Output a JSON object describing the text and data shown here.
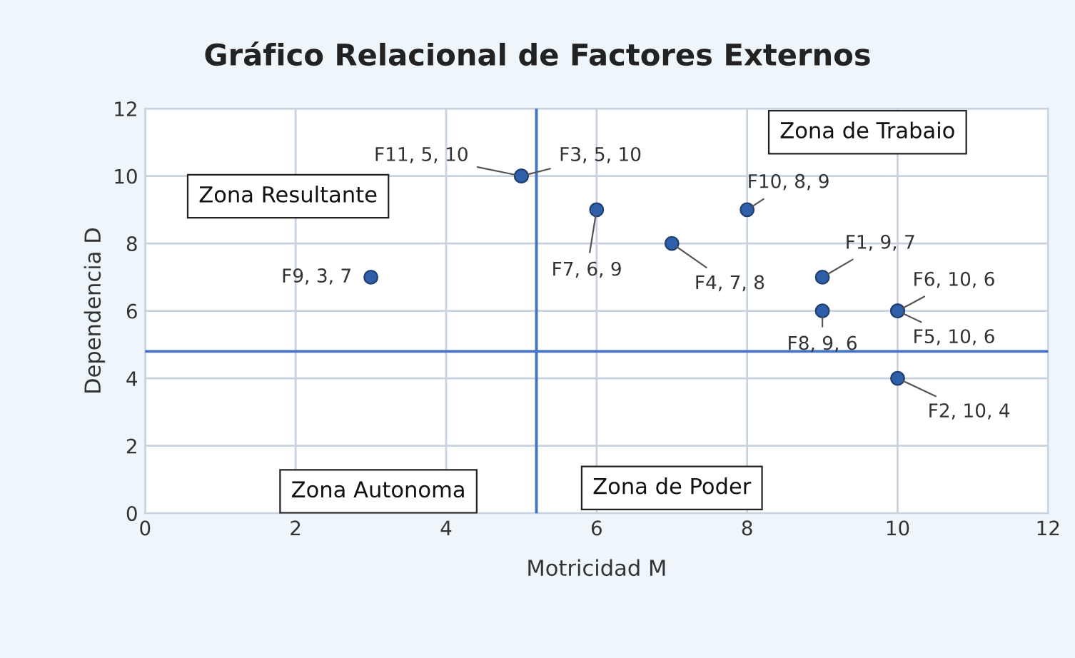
{
  "chart_data": {
    "type": "scatter",
    "title": "Gráfico Relacional de Factores Externos",
    "xlabel": "Motricidad M",
    "ylabel": "Dependencia D",
    "x": [
      9,
      10,
      5,
      7,
      10,
      10,
      6,
      9,
      3,
      8,
      5
    ],
    "values": [
      7,
      4,
      10,
      8,
      6,
      6,
      9,
      6,
      7,
      9,
      10
    ],
    "value_labels": [
      "F1, 9, 7",
      "F2, 10, 4",
      "F3, 5, 10",
      "F4, 7, 8",
      "F5, 10, 6",
      "F6, 10, 6",
      "F7, 6, 9",
      "F8, 9, 6",
      "F9, 3, 7",
      "F10, 8, 9",
      "F11, 5, 10"
    ],
    "color": "#2e5fa8",
    "marker": "circle",
    "xlim": [
      0,
      12
    ],
    "ylim": [
      0,
      12
    ],
    "xticks": [
      0,
      2,
      4,
      6,
      8,
      10,
      12
    ],
    "yticks": [
      0,
      2,
      4,
      6,
      8,
      10,
      12
    ],
    "grid": true,
    "ref_lines": [
      {
        "axis": "x",
        "value": 5.2,
        "color": "#4472c4"
      },
      {
        "axis": "y",
        "value": 4.8,
        "color": "#4472c4"
      }
    ],
    "annotations": [
      "Zona de Trabaio",
      "Zona Resultante",
      "Zona Autonoma",
      "Zona de Poder"
    ]
  }
}
